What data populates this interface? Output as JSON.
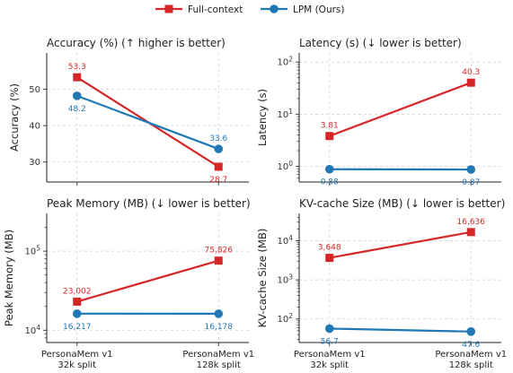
{
  "legend": {
    "items": [
      {
        "label": "Full-context",
        "color": "#d62728",
        "marker": "square"
      },
      {
        "label": "LPM (Ours)",
        "color": "#1f77b4",
        "marker": "circle"
      }
    ]
  },
  "chart_data": [
    {
      "type": "line",
      "title": "Accuracy (%)  (↑ higher is better)",
      "ylabel": "Accuracy (%)",
      "yscale": "linear",
      "ylim": [
        24.5,
        60
      ],
      "yticks": [
        30,
        40,
        50
      ],
      "grid": true,
      "categories": [
        "PersonaMem v1\n32k split",
        "PersonaMem v1\n128k split"
      ],
      "series": [
        {
          "name": "Full-context",
          "values": [
            53.3,
            28.7
          ],
          "labels": [
            "53.3",
            "28.7"
          ]
        },
        {
          "name": "LPM (Ours)",
          "values": [
            48.2,
            33.6
          ],
          "labels": [
            "48.2",
            "33.6"
          ]
        }
      ]
    },
    {
      "type": "line",
      "title": "Latency (s)  (↓ lower is better)",
      "ylabel": "Latency (s)",
      "yscale": "log",
      "ylim": [
        0.5,
        150
      ],
      "yticks": [
        1,
        10,
        100
      ],
      "ytick_labels": [
        "10^0",
        "10^1",
        "10^2"
      ],
      "grid": true,
      "categories": [
        "PersonaMem v1\n32k split",
        "PersonaMem v1\n128k split"
      ],
      "series": [
        {
          "name": "Full-context",
          "values": [
            3.81,
            40.3
          ],
          "labels": [
            "3.81",
            "40.3"
          ]
        },
        {
          "name": "LPM (Ours)",
          "values": [
            0.88,
            0.87
          ],
          "labels": [
            "0.88",
            "0.87"
          ]
        }
      ]
    },
    {
      "type": "line",
      "title": "Peak Memory (MB)  (↓ lower is better)",
      "ylabel": "Peak Memory (MB)",
      "yscale": "log",
      "ylim": [
        7000,
        300000
      ],
      "yticks": [
        10000,
        100000
      ],
      "ytick_labels": [
        "10^4",
        "10^5"
      ],
      "grid": true,
      "categories": [
        "PersonaMem v1\n32k split",
        "PersonaMem v1\n128k split"
      ],
      "series": [
        {
          "name": "Full-context",
          "values": [
            23002,
            75826
          ],
          "labels": [
            "23,002",
            "75,826"
          ]
        },
        {
          "name": "LPM (Ours)",
          "values": [
            16217,
            16178
          ],
          "labels": [
            "16,217",
            "16,178"
          ]
        }
      ]
    },
    {
      "type": "line",
      "title": "KV-cache Size (MB)  (↓ lower is better)",
      "ylabel": "KV-cache Size (MB)",
      "yscale": "log",
      "ylim": [
        25,
        50000
      ],
      "yticks": [
        100,
        1000,
        10000
      ],
      "ytick_labels": [
        "10^2",
        "10^3",
        "10^4"
      ],
      "grid": true,
      "categories": [
        "PersonaMem v1\n32k split",
        "PersonaMem v1\n128k split"
      ],
      "series": [
        {
          "name": "Full-context",
          "values": [
            3648,
            16636
          ],
          "labels": [
            "3,648",
            "16,636"
          ]
        },
        {
          "name": "LPM (Ours)",
          "values": [
            56.7,
            47.6
          ],
          "labels": [
            "56.7",
            "47.6"
          ]
        }
      ]
    }
  ]
}
